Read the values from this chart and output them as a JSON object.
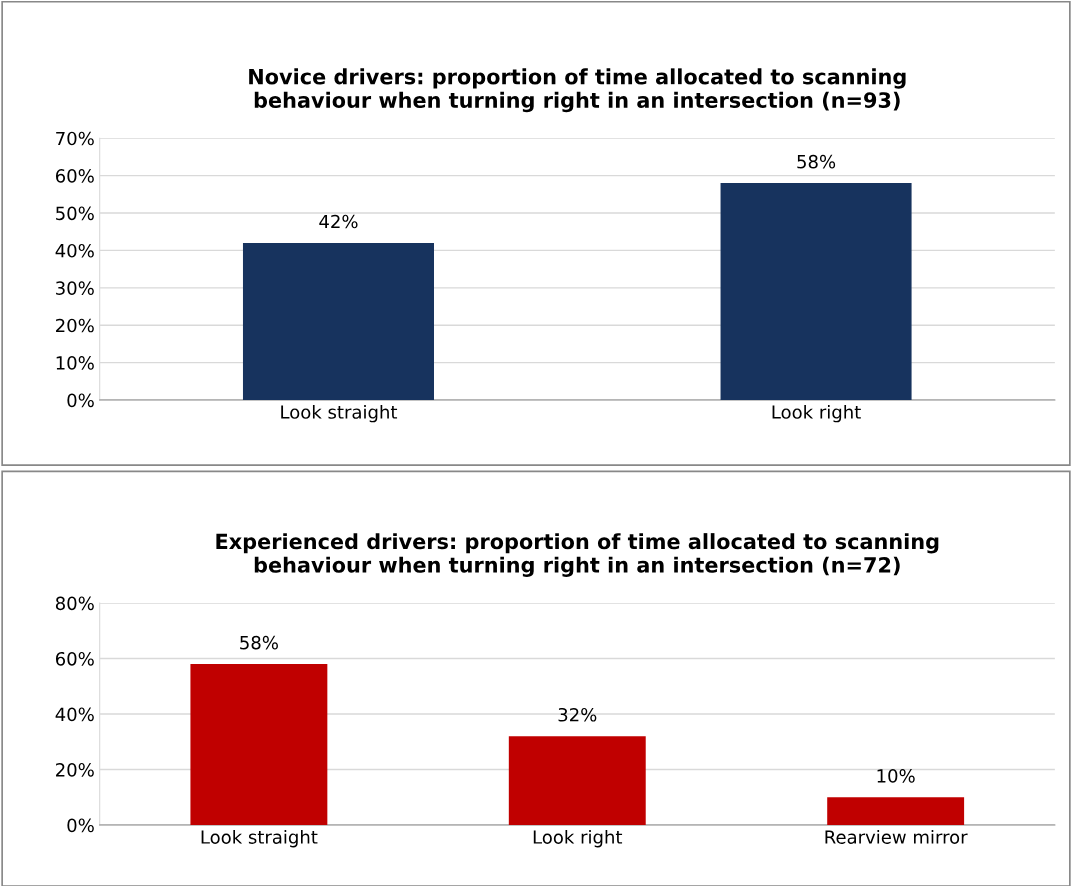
{
  "chart_data": [
    {
      "type": "bar",
      "title": "Novice drivers: proportion of time allocated to scanning\nbehaviour when turning right in an intersection (n=93)",
      "categories": [
        "Look straight",
        "Look right"
      ],
      "values": [
        42,
        58
      ],
      "color": "#17335e",
      "value_labels": [
        "42%",
        "58%"
      ],
      "ylim": [
        0,
        70
      ],
      "yticks": [
        {
          "value": 0,
          "label": "0%"
        },
        {
          "value": 10,
          "label": "10%"
        },
        {
          "value": 20,
          "label": "20%"
        },
        {
          "value": 30,
          "label": "30%"
        },
        {
          "value": 40,
          "label": "40%"
        },
        {
          "value": 50,
          "label": "50%"
        },
        {
          "value": 60,
          "label": "60%"
        },
        {
          "value": 70,
          "label": "70%"
        }
      ],
      "grid": "y",
      "legend": false
    },
    {
      "type": "bar",
      "title": "Experienced drivers: proportion of time allocated to scanning\nbehaviour when turning right in an intersection (n=72)",
      "categories": [
        "Look straight",
        "Look right",
        "Rearview mirror"
      ],
      "values": [
        58,
        32,
        10
      ],
      "color": "#c00000",
      "value_labels": [
        "58%",
        "32%",
        "10%"
      ],
      "ylim": [
        0,
        80
      ],
      "yticks": [
        {
          "value": 0,
          "label": "0%"
        },
        {
          "value": 20,
          "label": "20%"
        },
        {
          "value": 40,
          "label": "40%"
        },
        {
          "value": 60,
          "label": "60%"
        },
        {
          "value": 80,
          "label": "80%"
        }
      ],
      "grid": "y",
      "legend": false
    }
  ]
}
